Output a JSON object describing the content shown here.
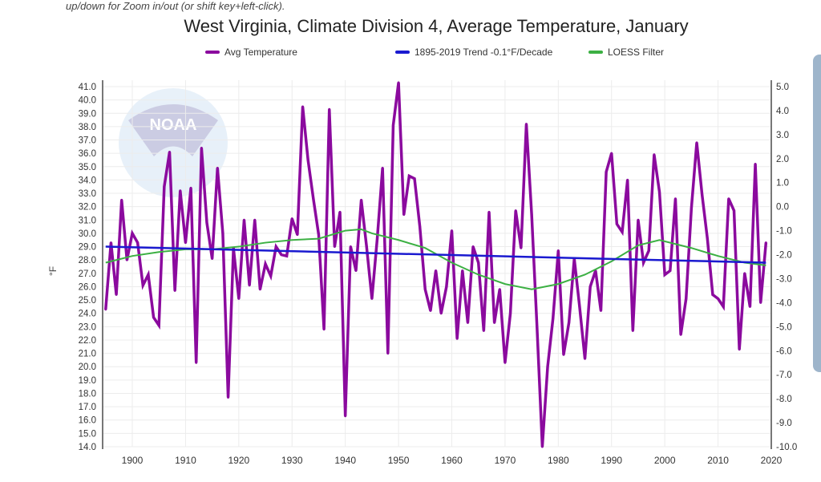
{
  "hint_text": "up/down for Zoom in/out (or shift key+left-click).",
  "chart_data": {
    "type": "line",
    "title": "West Virginia, Climate Division 4, Average Temperature, January",
    "ylabel": "°F",
    "xlabel": "",
    "xlim": [
      1895,
      2020
    ],
    "ylim": [
      14.0,
      41.0
    ],
    "y2lim": [
      -10.0,
      5.0
    ],
    "x_ticks": [
      "1900",
      "1910",
      "1920",
      "1930",
      "1940",
      "1950",
      "1960",
      "1970",
      "1980",
      "1990",
      "2000",
      "2010",
      "2020"
    ],
    "y_ticks": [
      "14.0",
      "15.0",
      "16.0",
      "17.0",
      "18.0",
      "19.0",
      "20.0",
      "21.0",
      "22.0",
      "23.0",
      "24.0",
      "25.0",
      "26.0",
      "27.0",
      "28.0",
      "29.0",
      "30.0",
      "31.0",
      "32.0",
      "33.0",
      "34.0",
      "35.0",
      "36.0",
      "37.0",
      "38.0",
      "39.0",
      "40.0",
      "41.0"
    ],
    "y2_ticks": [
      "-10.0",
      "-9.0",
      "-8.0",
      "-7.0",
      "-6.0",
      "-5.0",
      "-4.0",
      "-3.0",
      "-2.0",
      "-1.0",
      "0.0",
      "1.0",
      "2.0",
      "3.0",
      "4.0",
      "5.0"
    ],
    "grid": true,
    "legend_position": "top",
    "series": [
      {
        "name": "Avg Temperature",
        "color": "#8b0a9e",
        "x_start": 1895,
        "values": [
          24.3,
          29.3,
          25.4,
          32.5,
          28.0,
          30.0,
          29.3,
          26.1,
          26.9,
          23.7,
          23.1,
          33.5,
          36.1,
          25.7,
          33.2,
          29.3,
          33.4,
          20.3,
          36.4,
          30.8,
          28.1,
          34.9,
          30.0,
          17.7,
          28.9,
          25.1,
          31.0,
          26.1,
          31.0,
          25.8,
          27.7,
          26.8,
          29.0,
          28.4,
          28.3,
          31.1,
          29.9,
          39.5,
          35.5,
          32.6,
          29.9,
          22.8,
          39.3,
          29.0,
          31.6,
          16.3,
          29.0,
          27.2,
          32.5,
          29.0,
          25.1,
          29.6,
          34.9,
          21.0,
          38.1,
          41.3,
          31.4,
          34.3,
          34.1,
          30.5,
          25.8,
          24.2,
          27.2,
          24.0,
          26.0,
          30.2,
          22.1,
          27.2,
          23.3,
          29.0,
          27.8,
          22.7,
          31.6,
          23.3,
          25.8,
          20.3,
          24.0,
          31.7,
          28.9,
          38.2,
          31.4,
          23.0,
          14.0,
          20.0,
          23.6,
          28.7,
          20.9,
          23.3,
          28.1,
          24.5,
          20.6,
          26.0,
          27.2,
          24.2,
          34.6,
          36.0,
          30.7,
          30.1,
          34.0,
          22.7,
          31.0,
          27.8,
          28.7,
          35.9,
          33.1,
          26.9,
          27.2,
          32.6,
          22.4,
          25.1,
          31.9,
          36.8,
          32.9,
          29.6,
          25.4,
          25.1,
          24.5,
          32.6,
          31.7,
          21.3,
          27.0,
          24.5,
          35.2,
          24.8,
          29.3
        ]
      },
      {
        "name": "1895-2019 Trend -0.1°F/Decade",
        "color": "#1a1ad0",
        "points": [
          [
            1895,
            29.0
          ],
          [
            2019,
            27.8
          ]
        ]
      },
      {
        "name": "LOESS Filter",
        "color": "#3cb043",
        "points": [
          [
            1895,
            27.8
          ],
          [
            1900,
            28.3
          ],
          [
            1905,
            28.6
          ],
          [
            1910,
            28.8
          ],
          [
            1915,
            28.8
          ],
          [
            1920,
            29.0
          ],
          [
            1925,
            29.3
          ],
          [
            1930,
            29.5
          ],
          [
            1935,
            29.6
          ],
          [
            1940,
            30.2
          ],
          [
            1943,
            30.3
          ],
          [
            1945,
            30.0
          ],
          [
            1950,
            29.5
          ],
          [
            1955,
            28.9
          ],
          [
            1960,
            27.8
          ],
          [
            1965,
            26.9
          ],
          [
            1970,
            26.2
          ],
          [
            1975,
            25.8
          ],
          [
            1980,
            26.2
          ],
          [
            1985,
            26.9
          ],
          [
            1990,
            27.9
          ],
          [
            1995,
            29.1
          ],
          [
            1999,
            29.5
          ],
          [
            2005,
            28.9
          ],
          [
            2010,
            28.3
          ],
          [
            2015,
            27.8
          ],
          [
            2019,
            27.6
          ]
        ]
      }
    ]
  },
  "watermark": {
    "text": "NOAA",
    "ring_text": "NATIONAL OCEANIC AND ATMOSPHERIC ADMINISTRATION · U.S. DEPARTMENT OF COMMERCE"
  }
}
